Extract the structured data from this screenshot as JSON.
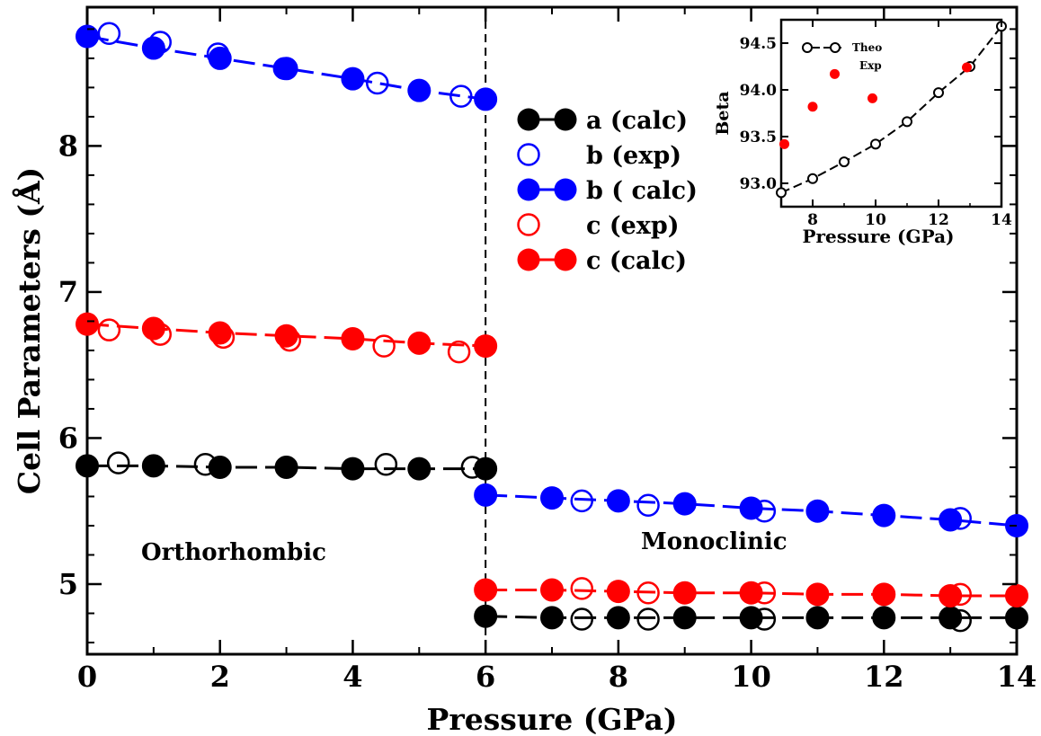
{
  "chart_data": [
    {
      "type": "scatter",
      "xlabel": "Pressure (GPa)",
      "ylabel": "Cell Parameters (Å)",
      "xlim": [
        0,
        14
      ],
      "ylim": [
        4.52,
        8.95
      ],
      "xticks": [
        "0",
        "2",
        "4",
        "6",
        "8",
        "10",
        "12",
        "14"
      ],
      "yticks": [
        "5",
        "6",
        "7",
        "8"
      ],
      "xtick_values": [
        0,
        2,
        4,
        6,
        8,
        10,
        12,
        14
      ],
      "ytick_values": [
        5,
        6,
        7,
        8
      ],
      "grid": false,
      "legend_position": "center-right",
      "phase_boundary": 6,
      "annotations": [
        "Orthorhombic",
        "Monoclinic"
      ],
      "series": [
        {
          "name": "a (calc)",
          "color": "#000000",
          "marker": "filled-circle",
          "line": "dashed",
          "segments": [
            {
              "x": [
                0,
                1,
                2,
                3,
                4,
                5,
                6
              ],
              "y": [
                5.81,
                5.81,
                5.8,
                5.8,
                5.79,
                5.79,
                5.79
              ]
            },
            {
              "x": [
                6,
                7,
                8,
                9,
                10,
                11,
                12,
                13,
                14
              ],
              "y": [
                4.78,
                4.77,
                4.77,
                4.77,
                4.77,
                4.77,
                4.77,
                4.77,
                4.77
              ]
            }
          ]
        },
        {
          "name": "a (exp)",
          "color": "#000000",
          "marker": "open-circle",
          "line": "none",
          "in_legend": false,
          "segments": [
            {
              "x": [
                0.47,
                1.78,
                4.5,
                5.8
              ],
              "y": [
                5.83,
                5.82,
                5.82,
                5.8
              ]
            },
            {
              "x": [
                7.45,
                8.45,
                10.2,
                13.15
              ],
              "y": [
                4.76,
                4.76,
                4.76,
                4.75
              ]
            }
          ]
        },
        {
          "name": "b (exp)",
          "color": "#0000ff",
          "marker": "open-circle",
          "line": "none",
          "segments": [
            {
              "x": [
                0.33,
                1.1,
                1.97,
                2.97,
                4.37,
                5.63
              ],
              "y": [
                8.77,
                8.71,
                8.63,
                8.53,
                8.43,
                8.34
              ]
            },
            {
              "x": [
                7.45,
                8.45,
                10.2,
                13.15
              ],
              "y": [
                5.57,
                5.54,
                5.5,
                5.45
              ]
            }
          ]
        },
        {
          "name": "b ( calc)",
          "color": "#0000ff",
          "marker": "filled-circle",
          "line": "dashed",
          "segments": [
            {
              "x": [
                0,
                1,
                2,
                3,
                4,
                5,
                6
              ],
              "y": [
                8.75,
                8.67,
                8.6,
                8.53,
                8.46,
                8.38,
                8.32
              ]
            },
            {
              "x": [
                6,
                7,
                8,
                9,
                10,
                11,
                12,
                13,
                14
              ],
              "y": [
                5.61,
                5.59,
                5.57,
                5.55,
                5.52,
                5.5,
                5.47,
                5.44,
                5.4
              ]
            }
          ]
        },
        {
          "name": "c (exp)",
          "color": "#ff0000",
          "marker": "open-circle",
          "line": "none",
          "segments": [
            {
              "x": [
                0.33,
                1.1,
                2.05,
                3.05,
                4.47,
                5.6
              ],
              "y": [
                6.74,
                6.71,
                6.69,
                6.67,
                6.63,
                6.59
              ]
            },
            {
              "x": [
                7.45,
                8.45,
                10.2,
                13.15
              ],
              "y": [
                4.97,
                4.94,
                4.94,
                4.93
              ]
            }
          ]
        },
        {
          "name": "c (calc)",
          "color": "#ff0000",
          "marker": "filled-circle",
          "line": "dashed",
          "segments": [
            {
              "x": [
                0,
                1,
                2,
                3,
                4,
                5,
                6
              ],
              "y": [
                6.78,
                6.75,
                6.72,
                6.7,
                6.68,
                6.65,
                6.63
              ]
            },
            {
              "x": [
                6,
                7,
                8,
                9,
                10,
                11,
                12,
                13,
                14
              ],
              "y": [
                4.96,
                4.96,
                4.95,
                4.94,
                4.94,
                4.93,
                4.93,
                4.92,
                4.92
              ]
            }
          ]
        }
      ]
    },
    {
      "type": "scatter",
      "xlabel": "Pressure (GPa)",
      "ylabel": "Beta",
      "xlim": [
        7,
        14
      ],
      "ylim": [
        92.75,
        94.75
      ],
      "xticks": [
        "8",
        "10",
        "12",
        "14"
      ],
      "yticks": [
        "93.0",
        "93.5",
        "94.0",
        "94.5"
      ],
      "xtick_values": [
        8,
        10,
        12,
        14
      ],
      "ytick_values": [
        93.0,
        93.5,
        94.0,
        94.5
      ],
      "legend_position": "top-left",
      "series": [
        {
          "name": "Theo",
          "color": "#000000",
          "marker": "open-circle",
          "line": "dashed",
          "x": [
            7,
            8,
            9,
            10,
            11,
            12,
            13,
            14
          ],
          "y": [
            92.9,
            93.05,
            93.23,
            93.42,
            93.66,
            93.97,
            94.25,
            94.68
          ]
        },
        {
          "name": "Exp",
          "color": "#ff0000",
          "marker": "filled-circle",
          "line": "none",
          "x": [
            7.1,
            8.0,
            8.7,
            9.9,
            12.9
          ],
          "y": [
            93.42,
            93.82,
            94.17,
            93.91,
            94.24
          ]
        }
      ]
    }
  ]
}
